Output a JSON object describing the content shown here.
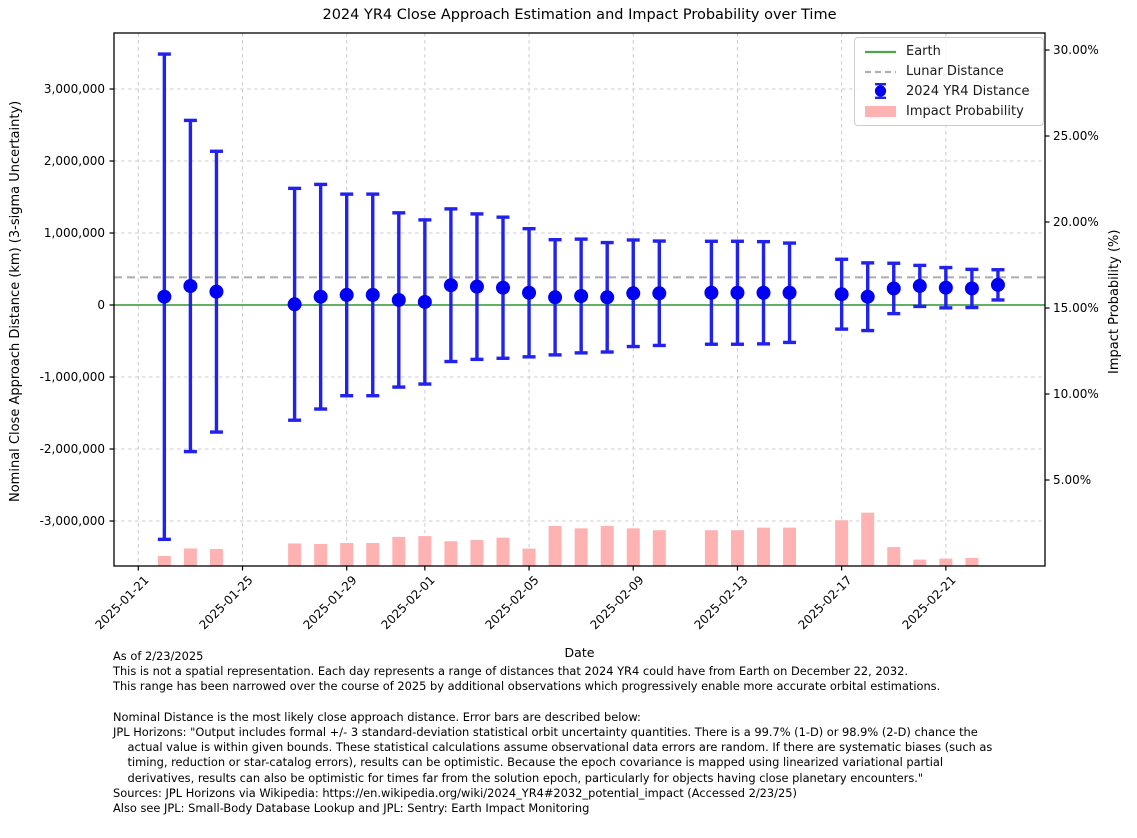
{
  "title": "2024 YR4 Close Approach Estimation and Impact Probability over Time",
  "chart_data": {
    "type": "errorbar-scatter + bar (twin y-axes, time series)",
    "title": "2024 YR4 Close Approach Estimation and Impact Probability over Time",
    "xlabel": "Date",
    "ylabel_left": "Nominal Close Approach Distance (km) (3-sigma Uncertainty)",
    "ylabel_right": "Impact Probability (%)",
    "grid": true,
    "legend_position": "upper right",
    "x_ticks": [
      "2025-01-21",
      "2025-01-25",
      "2025-01-29",
      "2025-02-01",
      "2025-02-05",
      "2025-02-09",
      "2025-02-13",
      "2025-02-17",
      "2025-02-21"
    ],
    "y_left_ticks": [
      {
        "label": "3,000,000",
        "value": 3000000
      },
      {
        "label": "2,000,000",
        "value": 2000000
      },
      {
        "label": "1,000,000",
        "value": 1000000
      },
      {
        "label": "0",
        "value": 0
      },
      {
        "label": "-1,000,000",
        "value": -1000000
      },
      {
        "label": "-2,000,000",
        "value": -2000000
      },
      {
        "label": "-3,000,000",
        "value": -3000000
      }
    ],
    "y_right_ticks": [
      {
        "label": "30.00%",
        "value": 30
      },
      {
        "label": "25.00%",
        "value": 25
      },
      {
        "label": "20.00%",
        "value": 20
      },
      {
        "label": "15.00%",
        "value": 15
      },
      {
        "label": "10.00%",
        "value": 10
      },
      {
        "label": "5.00%",
        "value": 5
      }
    ],
    "ylim_left_km": [
      -3625000,
      3780000
    ],
    "ylim_right_pct": [
      0,
      31
    ],
    "reference_lines": [
      {
        "name": "Earth",
        "value_km": 0
      },
      {
        "name": "Lunar Distance",
        "value_km": 384400
      }
    ],
    "points": [
      {
        "date": "2025-01-22",
        "nominal_km": 115000,
        "sigma3_km": 3370000,
        "impact_pct": 0.58
      },
      {
        "date": "2025-01-23",
        "nominal_km": 264000,
        "sigma3_km": 2300000,
        "impact_pct": 1.02
      },
      {
        "date": "2025-01-24",
        "nominal_km": 185000,
        "sigma3_km": 1950000,
        "impact_pct": 0.99
      },
      {
        "date": "2025-01-27",
        "nominal_km": 10000,
        "sigma3_km": 1610000,
        "impact_pct": 1.31
      },
      {
        "date": "2025-01-28",
        "nominal_km": 115000,
        "sigma3_km": 1560000,
        "impact_pct": 1.28
      },
      {
        "date": "2025-01-29",
        "nominal_km": 140000,
        "sigma3_km": 1400000,
        "impact_pct": 1.34
      },
      {
        "date": "2025-01-30",
        "nominal_km": 140000,
        "sigma3_km": 1400000,
        "impact_pct": 1.34
      },
      {
        "date": "2025-01-31",
        "nominal_km": 70000,
        "sigma3_km": 1210000,
        "impact_pct": 1.69
      },
      {
        "date": "2025-02-01",
        "nominal_km": 42000,
        "sigma3_km": 1140000,
        "impact_pct": 1.74
      },
      {
        "date": "2025-02-02",
        "nominal_km": 275000,
        "sigma3_km": 1060000,
        "impact_pct": 1.44
      },
      {
        "date": "2025-02-03",
        "nominal_km": 255000,
        "sigma3_km": 1010000,
        "impact_pct": 1.51
      },
      {
        "date": "2025-02-04",
        "nominal_km": 240000,
        "sigma3_km": 980000,
        "impact_pct": 1.65
      },
      {
        "date": "2025-02-05",
        "nominal_km": 170000,
        "sigma3_km": 890000,
        "impact_pct": 1.01
      },
      {
        "date": "2025-02-06",
        "nominal_km": 107000,
        "sigma3_km": 800000,
        "impact_pct": 2.33
      },
      {
        "date": "2025-02-07",
        "nominal_km": 125000,
        "sigma3_km": 790000,
        "impact_pct": 2.19
      },
      {
        "date": "2025-02-08",
        "nominal_km": 107000,
        "sigma3_km": 760000,
        "impact_pct": 2.33
      },
      {
        "date": "2025-02-09",
        "nominal_km": 163000,
        "sigma3_km": 740000,
        "impact_pct": 2.19
      },
      {
        "date": "2025-02-10",
        "nominal_km": 163000,
        "sigma3_km": 725000,
        "impact_pct": 2.08
      },
      {
        "date": "2025-02-12",
        "nominal_km": 170000,
        "sigma3_km": 715000,
        "impact_pct": 2.08
      },
      {
        "date": "2025-02-13",
        "nominal_km": 170000,
        "sigma3_km": 715000,
        "impact_pct": 2.08
      },
      {
        "date": "2025-02-14",
        "nominal_km": 170000,
        "sigma3_km": 710000,
        "impact_pct": 2.23
      },
      {
        "date": "2025-02-15",
        "nominal_km": 170000,
        "sigma3_km": 690000,
        "impact_pct": 2.23
      },
      {
        "date": "2025-02-17",
        "nominal_km": 150000,
        "sigma3_km": 485000,
        "impact_pct": 2.66
      },
      {
        "date": "2025-02-18",
        "nominal_km": 115000,
        "sigma3_km": 470000,
        "impact_pct": 3.1
      },
      {
        "date": "2025-02-19",
        "nominal_km": 230000,
        "sigma3_km": 350000,
        "impact_pct": 1.1
      },
      {
        "date": "2025-02-20",
        "nominal_km": 265000,
        "sigma3_km": 285000,
        "impact_pct": 0.37
      },
      {
        "date": "2025-02-21",
        "nominal_km": 240000,
        "sigma3_km": 280000,
        "impact_pct": 0.43
      },
      {
        "date": "2025-02-22",
        "nominal_km": 230000,
        "sigma3_km": 265000,
        "impact_pct": 0.47
      },
      {
        "date": "2025-02-23",
        "nominal_km": 280000,
        "sigma3_km": 210000,
        "impact_pct": 0.0
      }
    ]
  },
  "legend": {
    "items": [
      {
        "label": "Earth",
        "swatch": "line-green"
      },
      {
        "label": "Lunar Distance",
        "swatch": "dashed-gray"
      },
      {
        "label": "2024 YR4 Distance",
        "swatch": "errorbar-dot-blue"
      },
      {
        "label": "Impact Probability",
        "swatch": "bar-pink"
      }
    ]
  },
  "colors": {
    "marker_blue": "#0000f2",
    "errorbar_blue": "#2222ee",
    "earth_green": "#4ca64c",
    "lunar_gray": "#b0b0b0",
    "impact_pink": "#ffb2b2",
    "grid_gray": "#cccccc",
    "spine_black": "#000000"
  },
  "footer": {
    "lines": [
      "As of 2/23/2025",
      "This is not a spatial representation. Each day represents a range of distances that 2024 YR4 could have from Earth on December 22, 2032.",
      "This range has been narrowed over the course of 2025 by additional observations which progressively enable more accurate orbital estimations.",
      "",
      "Nominal Distance is the most likely close approach distance. Error bars are described below:",
      "JPL Horizons: \"Output includes formal +/- 3 standard-deviation statistical orbit uncertainty quantities. There is a 99.7% (1-D) or 98.9% (2-D) chance the",
      "    actual value is within given bounds. These statistical calculations assume observational data errors are random. If there are systematic biases (such as",
      "    timing, reduction or star-catalog errors), results can be optimistic. Because the epoch covariance is mapped using linearized variational partial",
      "    derivatives, results can also be optimistic for times far from the solution epoch, particularly for objects having close planetary encounters.\"",
      "Sources: JPL Horizons via Wikipedia: https://en.wikipedia.org/wiki/2024_YR4#2032_potential_impact (Accessed 2/23/25)",
      "Also see JPL: Small-Body Database Lookup and JPL: Sentry: Earth Impact Monitoring"
    ]
  }
}
